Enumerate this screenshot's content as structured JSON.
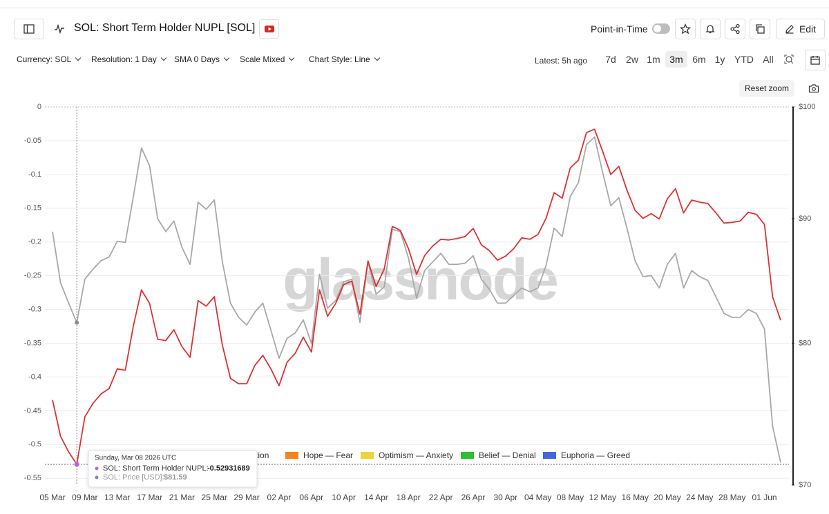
{
  "header": {
    "title": "SOL: Short Term Holder NUPL [SOL]",
    "point_in_time": "Point-in-Time",
    "edit": "Edit"
  },
  "controls": [
    "Currency: SOL",
    "Resolution: 1 Day",
    "SMA 0 Days",
    "Scale Mixed",
    "Chart Style: Line"
  ],
  "latest": "Latest: 5h ago",
  "ranges": [
    "7d",
    "2w",
    "1m",
    "3m",
    "6m",
    "1y",
    "YTD",
    "All"
  ],
  "reset_zoom": "Reset zoom",
  "watermark": "glassnode",
  "chart_data": {
    "type": "line",
    "categories": [
      "05 Mar",
      null,
      null,
      null,
      "09 Mar",
      null,
      null,
      null,
      "13 Mar",
      null,
      null,
      null,
      "17 Mar",
      null,
      null,
      null,
      "21 Mar",
      null,
      null,
      null,
      "25 Mar",
      null,
      null,
      null,
      "29 Mar",
      null,
      null,
      null,
      "02 Apr",
      null,
      null,
      null,
      "06 Apr",
      null,
      null,
      null,
      "10 Apr",
      null,
      null,
      null,
      "14 Apr",
      null,
      null,
      null,
      "18 Apr",
      null,
      null,
      null,
      "22 Apr",
      null,
      null,
      null,
      "26 Apr",
      null,
      null,
      null,
      "30 Apr",
      null,
      null,
      null,
      "04 May",
      null,
      null,
      null,
      "08 May",
      null,
      null,
      null,
      "12 May",
      null,
      null,
      null,
      "16 May",
      null,
      null,
      null,
      "20 May",
      null,
      null,
      null,
      "24 May",
      null,
      null,
      null,
      "28 May",
      null,
      null,
      null,
      "01 Jun",
      null,
      null
    ],
    "series": [
      {
        "name": "SOL: Short Term Holder NUPL",
        "color": "#e0302f",
        "axis": "y",
        "values": [
          -0.434,
          -0.488,
          -0.511,
          -0.52931689,
          -0.459,
          -0.439,
          -0.425,
          -0.417,
          -0.388,
          -0.39,
          -0.324,
          -0.271,
          -0.291,
          -0.344,
          -0.346,
          -0.33,
          -0.355,
          -0.371,
          -0.287,
          -0.295,
          -0.281,
          -0.353,
          -0.402,
          -0.41,
          -0.41,
          -0.383,
          -0.368,
          -0.388,
          -0.413,
          -0.378,
          -0.365,
          -0.341,
          -0.363,
          -0.271,
          -0.31,
          -0.291,
          -0.263,
          -0.258,
          -0.307,
          -0.228,
          -0.266,
          -0.24,
          -0.177,
          -0.183,
          -0.21,
          -0.248,
          -0.22,
          -0.206,
          -0.196,
          -0.197,
          -0.195,
          -0.192,
          -0.18,
          -0.204,
          -0.213,
          -0.227,
          -0.221,
          -0.21,
          -0.194,
          -0.196,
          -0.189,
          -0.165,
          -0.127,
          -0.135,
          -0.09,
          -0.079,
          -0.038,
          -0.033,
          -0.066,
          -0.1,
          -0.088,
          -0.123,
          -0.153,
          -0.165,
          -0.158,
          -0.166,
          -0.136,
          -0.121,
          -0.157,
          -0.138,
          -0.141,
          -0.143,
          -0.157,
          -0.172,
          -0.171,
          -0.169,
          -0.156,
          -0.159,
          -0.174,
          -0.281,
          -0.316
        ]
      },
      {
        "name": "SOL: Price [USD]",
        "color": "#a8a8a8",
        "axis": "y2",
        "values": [
          88.9,
          84.7,
          83.1,
          81.59,
          85.0,
          85.8,
          86.5,
          86.8,
          88.1,
          88.0,
          91.9,
          96.2,
          94.6,
          90.0,
          88.9,
          89.8,
          87.6,
          86.2,
          91.4,
          90.8,
          91.6,
          86.4,
          83.1,
          82.0,
          81.4,
          82.4,
          83.1,
          81.0,
          78.9,
          80.4,
          80.8,
          81.8,
          80.0,
          85.4,
          82.7,
          83.3,
          84.8,
          85.0,
          81.6,
          86.4,
          83.8,
          84.4,
          89.1,
          88.9,
          86.7,
          83.5,
          85.7,
          86.4,
          87.1,
          86.2,
          86.2,
          86.3,
          86.9,
          85.0,
          84.2,
          83.1,
          83.1,
          83.7,
          84.3,
          84.0,
          84.3,
          86.1,
          89.2,
          88.5,
          91.9,
          93.1,
          96.5,
          97.2,
          94.0,
          91.1,
          91.8,
          89.2,
          86.5,
          85.2,
          85.3,
          84.3,
          86.2,
          87.1,
          84.3,
          85.7,
          85.2,
          84.9,
          83.6,
          82.3,
          82.0,
          82.0,
          82.6,
          82.3,
          81.1,
          74.0,
          71.5
        ]
      }
    ],
    "ylim": [
      -0.56,
      0
    ],
    "yticks": [
      0,
      -0.05,
      -0.1,
      -0.15,
      -0.2,
      -0.25,
      -0.3,
      -0.35,
      -0.4,
      -0.45,
      -0.5,
      -0.55
    ],
    "y2lim": [
      70,
      100
    ],
    "y2scale": "log",
    "y2ticks": [
      {
        "value": 100,
        "label": "$100"
      },
      {
        "value": 90,
        "label": "$90"
      },
      {
        "value": 80,
        "label": "$80"
      },
      {
        "value": 70,
        "label": "$70"
      }
    ],
    "grid": true,
    "legend": [
      {
        "name": "Capitulation",
        "color": "#e0302f"
      },
      {
        "name": "Hope — Fear",
        "color": "#f5841f"
      },
      {
        "name": "Optimism — Anxiety",
        "color": "#ecd33c"
      },
      {
        "name": "Belief — Denial",
        "color": "#2fbf2f"
      },
      {
        "name": "Euphoria — Greed",
        "color": "#4566e0"
      }
    ],
    "tooltip": {
      "index": 3,
      "title": "Sunday, Mar 08 2026 UTC",
      "nupl_label": "SOL: Short Term Holder NUPL:",
      "price_label": "SOL: Price [USD]:",
      "price_value": "$81.59"
    }
  }
}
